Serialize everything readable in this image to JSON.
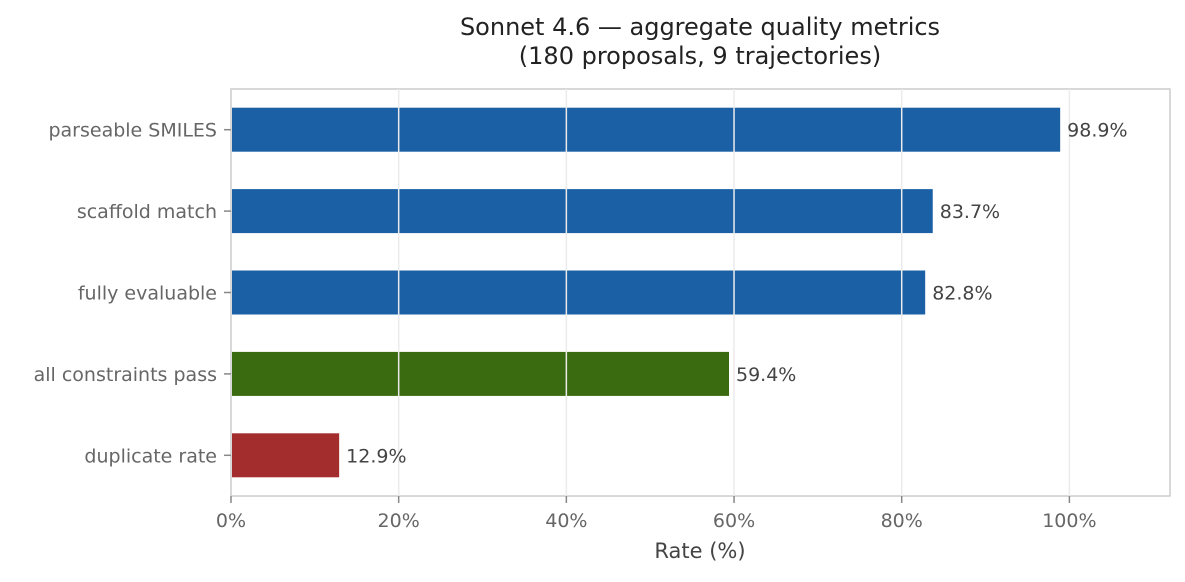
{
  "chart_data": {
    "type": "bar",
    "orientation": "horizontal",
    "title": "Sonnet 4.6 — aggregate quality metrics",
    "subtitle": "(180 proposals, 9 trajectories)",
    "xlabel": "Rate (%)",
    "ylabel": "",
    "xlim": [
      0,
      112
    ],
    "xticks": [
      0,
      20,
      40,
      60,
      80,
      100
    ],
    "xtick_labels": [
      "0%",
      "20%",
      "40%",
      "60%",
      "80%",
      "100%"
    ],
    "grid": "x",
    "categories": [
      "parseable SMILES",
      "scaffold match",
      "fully evaluable",
      "all constraints pass",
      "duplicate rate"
    ],
    "values": [
      98.9,
      83.7,
      82.8,
      59.4,
      12.9
    ],
    "value_labels": [
      "98.9%",
      "83.7%",
      "82.8%",
      "59.4%",
      "12.9%"
    ],
    "colors": [
      "#1b60a5",
      "#1b60a5",
      "#1b60a5",
      "#3a6b10",
      "#a32d2d"
    ]
  }
}
